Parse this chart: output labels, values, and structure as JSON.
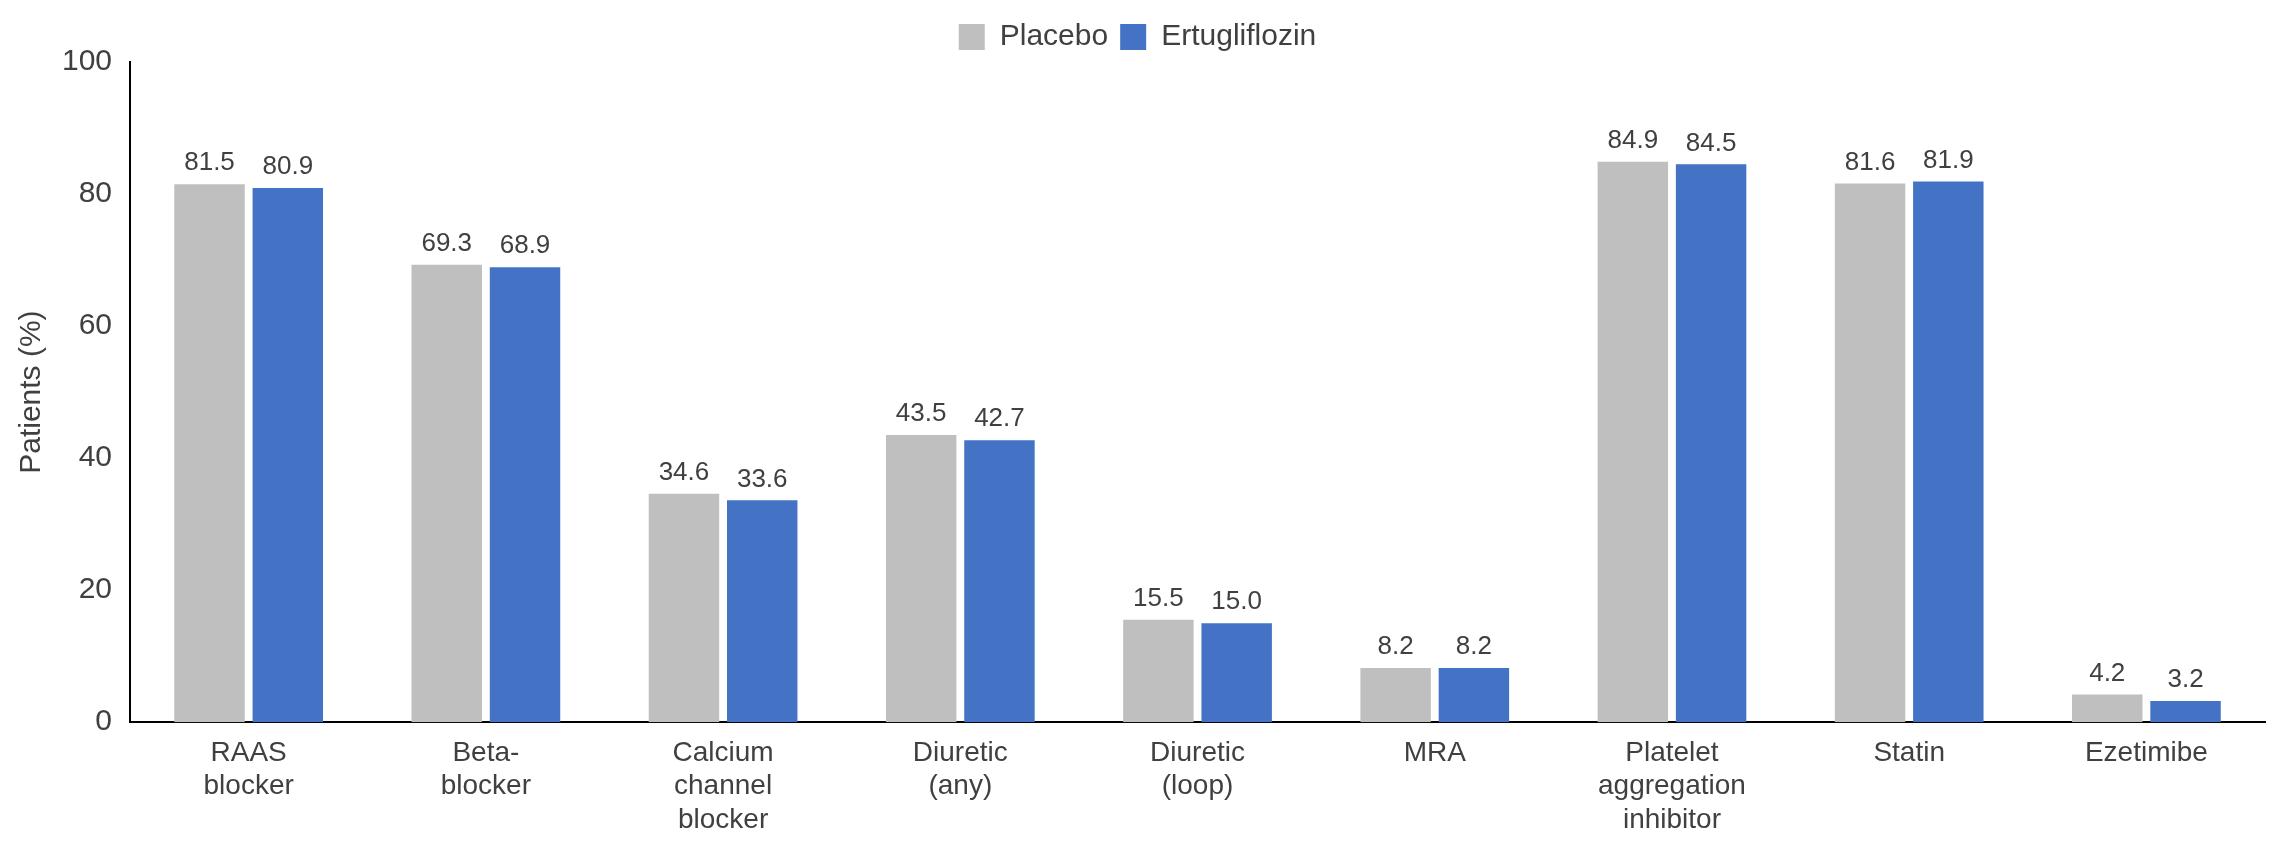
{
  "chart_data": {
    "type": "bar",
    "ylabel": "Patients (%)",
    "categories": [
      "RAAS\nblocker",
      "Beta-\nblocker",
      "Calcium\nchannel\nblocker",
      "Diuretic\n(any)",
      "Diuretic\n(loop)",
      "MRA",
      "Platelet\naggregation\ninhibitor",
      "Statin",
      "Ezetimibe"
    ],
    "series": [
      {
        "name": "Placebo",
        "color": "#bfbfbf",
        "values": [
          81.5,
          69.3,
          34.6,
          43.5,
          15.5,
          8.2,
          84.9,
          81.6,
          4.2
        ],
        "value_labels": [
          "81.5",
          "69.3",
          "34.6",
          "43.5",
          "15.5",
          "8.2",
          "84.9",
          "81.6",
          "4.2"
        ]
      },
      {
        "name": "Ertugliflozin",
        "color": "#4472c4",
        "values": [
          80.9,
          68.9,
          33.6,
          42.7,
          15.0,
          8.2,
          84.5,
          81.9,
          3.2
        ],
        "value_labels": [
          "80.9",
          "68.9",
          "33.6",
          "42.7",
          "15.0",
          "8.2",
          "84.5",
          "81.9",
          "3.2"
        ]
      }
    ],
    "ylim": [
      0,
      100
    ],
    "yticks": [
      0,
      20,
      40,
      60,
      80,
      100
    ],
    "grid": false,
    "legend": "top"
  }
}
